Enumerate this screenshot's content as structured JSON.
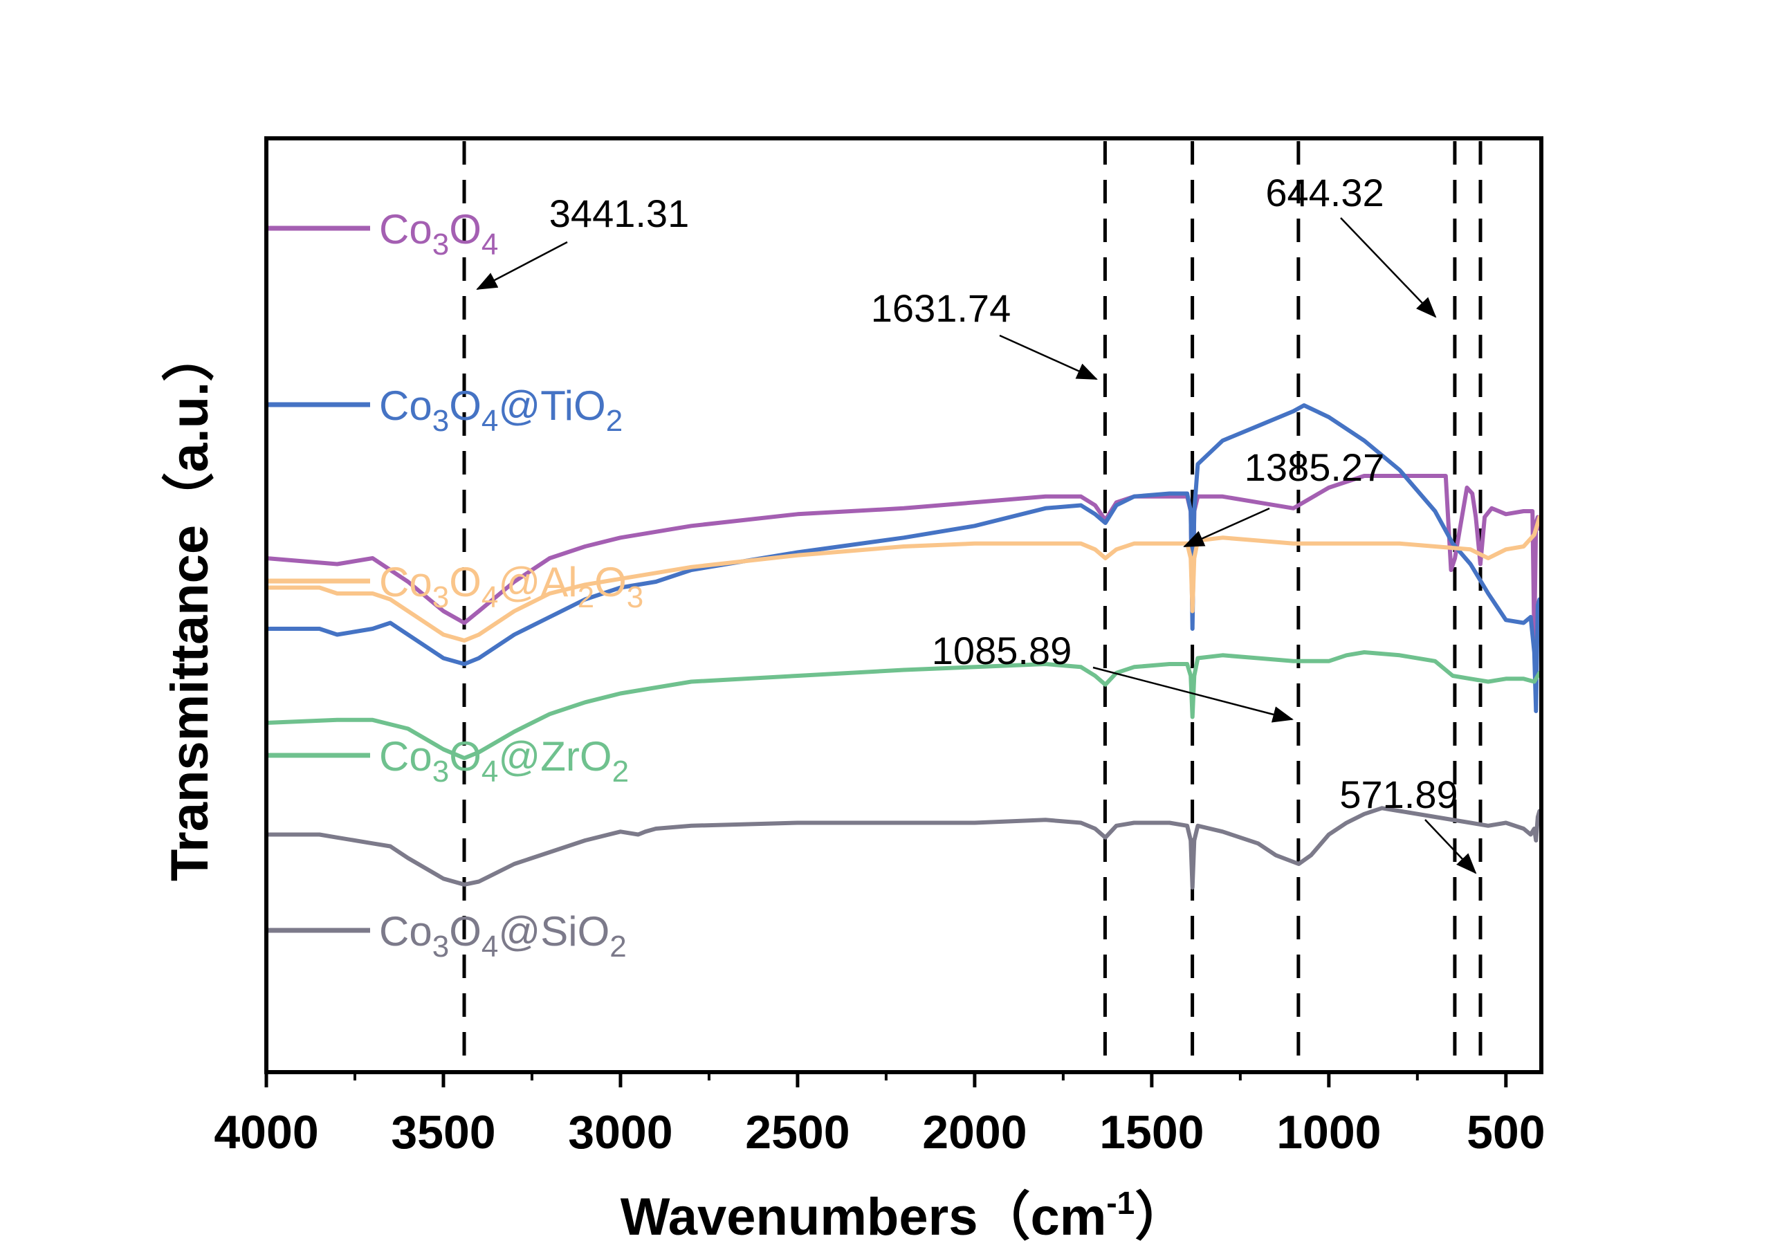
{
  "chart_data": {
    "type": "line",
    "xlabel": "Wavenumbers（cm-1）",
    "xlabel_main": "Wavenumbers（cm",
    "xlabel_sup": "-1",
    "xlabel_end": "）",
    "ylabel": "Transmittance（a.u.）",
    "xlim": [
      4000,
      400
    ],
    "x_ticks": [
      4000,
      3500,
      3000,
      2500,
      2000,
      1500,
      1000,
      500
    ],
    "y_ticks_shown": false,
    "grid": false,
    "legend_placement": "inline-left",
    "reference_lines": [
      3441.31,
      1631.74,
      1385.27,
      1085.89,
      644.32,
      571.89
    ],
    "annotations": [
      {
        "text": "3441.31",
        "target_x": 3441.31
      },
      {
        "text": "1631.74",
        "target_x": 1631.74
      },
      {
        "text": "1385.27",
        "target_x": 1385.27
      },
      {
        "text": "1085.89",
        "target_x": 1085.89
      },
      {
        "text": "644.32",
        "target_x": 644.32
      },
      {
        "text": "571.89",
        "target_x": 571.89
      }
    ],
    "series": [
      {
        "name": "Co3O4",
        "label": {
          "base": "Co",
          "sub1": "3",
          "mid": "O",
          "sub2": "4",
          "tail": "",
          "sub3": ""
        },
        "color": "#a45fb2",
        "x": [
          4000,
          3800,
          3700,
          3600,
          3500,
          3441,
          3400,
          3300,
          3200,
          3100,
          3000,
          2900,
          2800,
          2500,
          2200,
          2000,
          1800,
          1700,
          1660,
          1631,
          1600,
          1550,
          1450,
          1400,
          1390,
          1385,
          1380,
          1370,
          1300,
          1200,
          1100,
          1000,
          900,
          800,
          700,
          670,
          655,
          644,
          630,
          610,
          595,
          585,
          572,
          560,
          540,
          500,
          450,
          425,
          420,
          415,
          410,
          405
        ],
        "y": [
          0.88,
          0.87,
          0.88,
          0.84,
          0.79,
          0.77,
          0.79,
          0.84,
          0.88,
          0.9,
          0.915,
          0.925,
          0.935,
          0.955,
          0.965,
          0.975,
          0.985,
          0.985,
          0.97,
          0.945,
          0.975,
          0.985,
          0.985,
          0.985,
          0.96,
          0.78,
          0.96,
          0.985,
          0.985,
          0.975,
          0.965,
          1.0,
          1.02,
          1.02,
          1.02,
          1.02,
          0.86,
          0.88,
          0.93,
          1.0,
          0.99,
          0.95,
          0.87,
          0.95,
          0.965,
          0.955,
          0.96,
          0.96,
          0.74,
          0.94,
          0.95,
          0.93
        ]
      },
      {
        "name": "Co3O4@TiO2",
        "label": {
          "base": "Co",
          "sub1": "3",
          "mid": "O",
          "sub2": "4",
          "tail": "@TiO",
          "sub3": "2"
        },
        "color": "#4573c4",
        "x": [
          4000,
          3850,
          3800,
          3700,
          3650,
          3600,
          3500,
          3441,
          3400,
          3300,
          3200,
          3100,
          3000,
          2900,
          2800,
          2500,
          2200,
          2000,
          1800,
          1700,
          1660,
          1631,
          1600,
          1550,
          1450,
          1400,
          1390,
          1385,
          1380,
          1370,
          1300,
          1200,
          1100,
          1070,
          1000,
          900,
          800,
          700,
          650,
          600,
          550,
          500,
          450,
          430,
          420,
          415,
          410,
          405
        ],
        "y": [
          0.76,
          0.76,
          0.75,
          0.76,
          0.77,
          0.75,
          0.71,
          0.7,
          0.71,
          0.75,
          0.78,
          0.81,
          0.83,
          0.84,
          0.86,
          0.89,
          0.915,
          0.935,
          0.965,
          0.97,
          0.955,
          0.94,
          0.97,
          0.985,
          0.99,
          0.99,
          0.96,
          0.76,
          0.96,
          1.04,
          1.08,
          1.105,
          1.13,
          1.14,
          1.12,
          1.08,
          1.03,
          0.96,
          0.905,
          0.87,
          0.82,
          0.775,
          0.77,
          0.78,
          0.72,
          0.62,
          0.8,
          0.81
        ]
      },
      {
        "name": "Co3O4@Al2O3",
        "label": {
          "base": "Co",
          "sub1": "3",
          "mid": "O",
          "sub2": "4",
          "tail": "@Al",
          "sub3": "2",
          "tail2": "O",
          "sub4": "3"
        },
        "color": "#fac58a",
        "x": [
          4000,
          3850,
          3800,
          3700,
          3650,
          3600,
          3500,
          3441,
          3400,
          3300,
          3200,
          3100,
          3000,
          2900,
          2800,
          2500,
          2200,
          2000,
          1800,
          1700,
          1660,
          1631,
          1600,
          1550,
          1450,
          1400,
          1390,
          1385,
          1380,
          1370,
          1300,
          1200,
          1100,
          1000,
          900,
          800,
          700,
          600,
          550,
          500,
          450,
          420,
          410,
          405
        ],
        "y": [
          0.83,
          0.83,
          0.82,
          0.82,
          0.81,
          0.79,
          0.75,
          0.74,
          0.75,
          0.79,
          0.82,
          0.835,
          0.845,
          0.855,
          0.865,
          0.885,
          0.9,
          0.905,
          0.905,
          0.905,
          0.895,
          0.88,
          0.895,
          0.905,
          0.905,
          0.905,
          0.88,
          0.79,
          0.88,
          0.91,
          0.915,
          0.91,
          0.905,
          0.905,
          0.905,
          0.905,
          0.9,
          0.895,
          0.88,
          0.895,
          0.9,
          0.92,
          0.94,
          0.95
        ]
      },
      {
        "name": "Co3O4@ZrO2",
        "label": {
          "base": "Co",
          "sub1": "3",
          "mid": "O",
          "sub2": "4",
          "tail": "@ZrO",
          "sub3": "2"
        },
        "color": "#6fc18e",
        "x": [
          4000,
          3800,
          3700,
          3600,
          3500,
          3441,
          3400,
          3300,
          3200,
          3100,
          3000,
          2900,
          2800,
          2500,
          2200,
          2000,
          1800,
          1700,
          1660,
          1631,
          1600,
          1550,
          1450,
          1400,
          1390,
          1385,
          1380,
          1370,
          1300,
          1200,
          1100,
          1000,
          950,
          900,
          800,
          700,
          650,
          600,
          550,
          500,
          450,
          420,
          410,
          405
        ],
        "y": [
          0.6,
          0.605,
          0.605,
          0.59,
          0.555,
          0.54,
          0.55,
          0.585,
          0.615,
          0.635,
          0.65,
          0.66,
          0.67,
          0.68,
          0.69,
          0.695,
          0.7,
          0.695,
          0.68,
          0.665,
          0.685,
          0.695,
          0.7,
          0.7,
          0.68,
          0.61,
          0.68,
          0.71,
          0.715,
          0.71,
          0.705,
          0.705,
          0.715,
          0.72,
          0.715,
          0.705,
          0.68,
          0.675,
          0.67,
          0.675,
          0.675,
          0.67,
          0.68,
          0.685
        ]
      },
      {
        "name": "Co3O4@SiO2",
        "label": {
          "base": "Co",
          "sub1": "3",
          "mid": "O",
          "sub2": "4",
          "tail": "@SiO",
          "sub3": "2"
        },
        "color": "#7c7a8a",
        "x": [
          4000,
          3850,
          3800,
          3700,
          3650,
          3600,
          3500,
          3441,
          3400,
          3300,
          3200,
          3100,
          3000,
          2950,
          2930,
          2900,
          2800,
          2500,
          2200,
          2000,
          1800,
          1700,
          1660,
          1631,
          1600,
          1550,
          1450,
          1400,
          1390,
          1385,
          1380,
          1370,
          1300,
          1200,
          1150,
          1085,
          1050,
          1000,
          950,
          900,
          850,
          800,
          700,
          600,
          550,
          500,
          450,
          430,
          420,
          415,
          410,
          405
        ],
        "y": [
          0.41,
          0.41,
          0.405,
          0.395,
          0.39,
          0.37,
          0.335,
          0.325,
          0.33,
          0.36,
          0.38,
          0.4,
          0.415,
          0.41,
          0.415,
          0.42,
          0.425,
          0.43,
          0.43,
          0.43,
          0.435,
          0.43,
          0.42,
          0.405,
          0.425,
          0.43,
          0.43,
          0.425,
          0.4,
          0.32,
          0.4,
          0.425,
          0.415,
          0.395,
          0.375,
          0.36,
          0.375,
          0.41,
          0.43,
          0.445,
          0.455,
          0.45,
          0.44,
          0.43,
          0.425,
          0.43,
          0.42,
          0.41,
          0.42,
          0.4,
          0.44,
          0.45
        ]
      }
    ]
  }
}
